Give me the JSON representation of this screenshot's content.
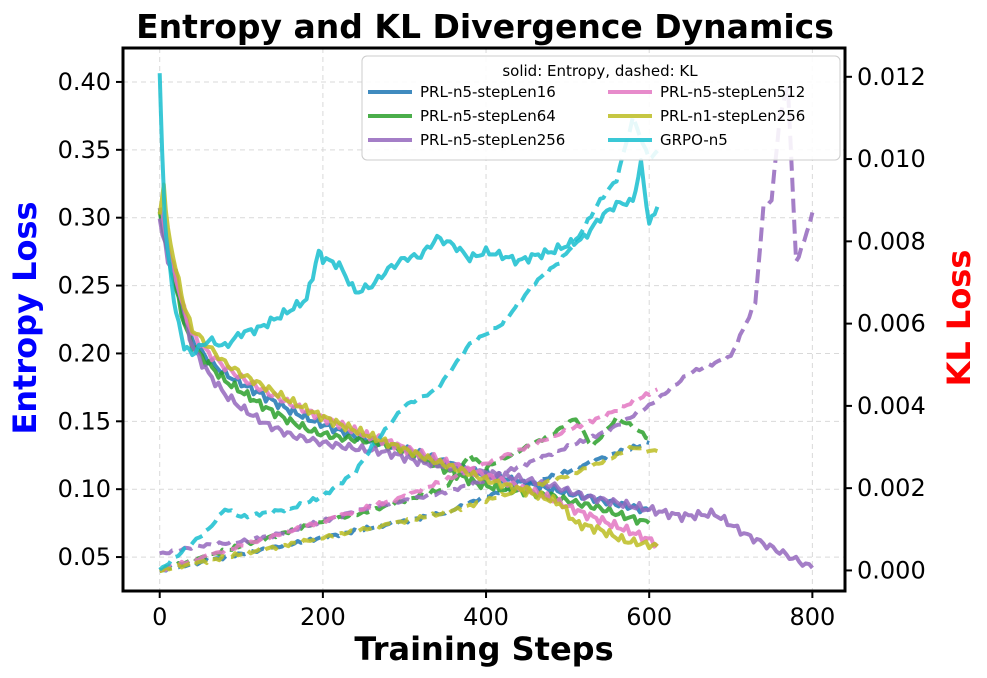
{
  "chart_data": {
    "type": "line",
    "title": "Entropy and KL Divergence Dynamics",
    "xlabel": "Training Steps",
    "ylabel_left": "Entropy Loss",
    "ylabel_right": "KL Loss",
    "ylabel_left_color": "#0000ff",
    "ylabel_right_color": "#ff0000",
    "xlim": [
      -45,
      840
    ],
    "ylim_left": [
      0.025,
      0.425
    ],
    "ylim_right": [
      -0.0005,
      0.0127
    ],
    "xticks": [
      0,
      200,
      400,
      600,
      800
    ],
    "xtick_labels": [
      "0",
      "200",
      "400",
      "600",
      "800"
    ],
    "yticks_left": [
      0.05,
      0.1,
      0.15,
      0.2,
      0.25,
      0.3,
      0.35,
      0.4
    ],
    "ytick_labels_left": [
      "0.05",
      "0.10",
      "0.15",
      "0.20",
      "0.25",
      "0.30",
      "0.35",
      "0.40"
    ],
    "yticks_right": [
      0.0,
      0.002,
      0.004,
      0.006,
      0.008,
      0.01,
      0.012
    ],
    "ytick_labels_right": [
      "0.000",
      "0.002",
      "0.004",
      "0.006",
      "0.008",
      "0.010",
      "0.012"
    ],
    "grid": true,
    "legend_title": "solid: Entropy, dashed: KL",
    "legend_position": "top-right",
    "series": [
      {
        "name": "PRL-n5-stepLen16",
        "color": "#1f77b4",
        "entropy": {
          "x": [
            0,
            10,
            20,
            30,
            40,
            60,
            80,
            100,
            130,
            160,
            190,
            220,
            250,
            280,
            300,
            330,
            360,
            390,
            420,
            450,
            480,
            510,
            540,
            570,
            600
          ],
          "y": [
            0.305,
            0.275,
            0.25,
            0.225,
            0.21,
            0.195,
            0.185,
            0.178,
            0.168,
            0.158,
            0.15,
            0.143,
            0.137,
            0.133,
            0.13,
            0.124,
            0.118,
            0.112,
            0.108,
            0.104,
            0.1,
            0.096,
            0.092,
            0.088,
            0.084
          ]
        },
        "kl": {
          "x": [
            0,
            50,
            100,
            150,
            200,
            250,
            300,
            350,
            400,
            450,
            500,
            550,
            600
          ],
          "y": [
            0.0,
            0.0002,
            0.0004,
            0.0006,
            0.0008,
            0.001,
            0.0012,
            0.0014,
            0.0018,
            0.0021,
            0.0024,
            0.0028,
            0.0031
          ]
        }
      },
      {
        "name": "PRL-n5-stepLen64",
        "color": "#2ca02c",
        "entropy": {
          "x": [
            0,
            10,
            20,
            30,
            40,
            60,
            80,
            100,
            130,
            160,
            190,
            220,
            250,
            280,
            300,
            330,
            360,
            390,
            420,
            450,
            480,
            510,
            540,
            570,
            600
          ],
          "y": [
            0.305,
            0.272,
            0.247,
            0.222,
            0.206,
            0.192,
            0.18,
            0.172,
            0.16,
            0.15,
            0.142,
            0.138,
            0.136,
            0.132,
            0.128,
            0.12,
            0.112,
            0.104,
            0.1,
            0.098,
            0.095,
            0.09,
            0.086,
            0.08,
            0.075
          ]
        },
        "kl": {
          "x": [
            0,
            50,
            100,
            150,
            200,
            250,
            300,
            350,
            380,
            400,
            450,
            480,
            510,
            530,
            560,
            580,
            600
          ],
          "y": [
            0.0,
            0.0003,
            0.0006,
            0.0009,
            0.0012,
            0.0014,
            0.0017,
            0.002,
            0.0028,
            0.0025,
            0.003,
            0.0033,
            0.0037,
            0.003,
            0.0037,
            0.0035,
            0.0032
          ]
        }
      },
      {
        "name": "PRL-n5-stepLen256",
        "color": "#9467bd",
        "entropy": {
          "x": [
            0,
            10,
            20,
            30,
            40,
            60,
            80,
            100,
            130,
            160,
            200,
            240,
            280,
            320,
            360,
            400,
            440,
            480,
            520,
            560,
            600,
            640,
            680,
            720,
            760,
            800
          ],
          "y": [
            0.3,
            0.268,
            0.258,
            0.23,
            0.205,
            0.185,
            0.17,
            0.16,
            0.148,
            0.14,
            0.134,
            0.13,
            0.127,
            0.12,
            0.116,
            0.112,
            0.108,
            0.103,
            0.095,
            0.09,
            0.085,
            0.08,
            0.082,
            0.066,
            0.054,
            0.042
          ]
        },
        "kl": {
          "x": [
            0,
            50,
            100,
            150,
            200,
            250,
            300,
            350,
            400,
            450,
            500,
            550,
            600,
            650,
            700,
            730,
            740,
            750,
            760,
            770,
            780,
            790,
            800
          ],
          "y": [
            0.0004,
            0.0006,
            0.0007,
            0.0009,
            0.0012,
            0.0015,
            0.0017,
            0.0019,
            0.0022,
            0.0026,
            0.003,
            0.0034,
            0.004,
            0.0048,
            0.0052,
            0.0065,
            0.0088,
            0.009,
            0.011,
            0.0118,
            0.0075,
            0.008,
            0.0087
          ]
        }
      },
      {
        "name": "PRL-n5-stepLen512",
        "color": "#e377c2",
        "entropy": {
          "x": [
            0,
            10,
            20,
            30,
            40,
            60,
            80,
            100,
            130,
            160,
            190,
            220,
            250,
            280,
            310,
            340,
            370,
            400,
            430,
            460,
            490,
            520,
            550,
            580,
            610
          ],
          "y": [
            0.31,
            0.28,
            0.255,
            0.232,
            0.214,
            0.2,
            0.19,
            0.182,
            0.172,
            0.163,
            0.155,
            0.148,
            0.14,
            0.135,
            0.128,
            0.122,
            0.116,
            0.11,
            0.104,
            0.098,
            0.09,
            0.082,
            0.075,
            0.068,
            0.06
          ]
        },
        "kl": {
          "x": [
            0,
            50,
            100,
            150,
            200,
            250,
            300,
            350,
            400,
            450,
            500,
            550,
            600,
            610
          ],
          "y": [
            0.0,
            0.0003,
            0.0006,
            0.0009,
            0.0012,
            0.0015,
            0.0018,
            0.0022,
            0.0026,
            0.003,
            0.0034,
            0.0038,
            0.0043,
            0.0044
          ]
        }
      },
      {
        "name": "PRL-n1-stepLen256",
        "color": "#bcbd22",
        "entropy": {
          "x": [
            0,
            5,
            10,
            20,
            30,
            40,
            60,
            80,
            100,
            130,
            160,
            190,
            220,
            250,
            280,
            310,
            340,
            370,
            400,
            430,
            460,
            490,
            510,
            540,
            570,
            600,
            610
          ],
          "y": [
            0.3,
            0.325,
            0.29,
            0.262,
            0.235,
            0.218,
            0.205,
            0.193,
            0.185,
            0.175,
            0.165,
            0.156,
            0.148,
            0.141,
            0.134,
            0.127,
            0.12,
            0.114,
            0.107,
            0.102,
            0.096,
            0.09,
            0.075,
            0.07,
            0.062,
            0.059,
            0.058
          ]
        },
        "kl": {
          "x": [
            0,
            50,
            100,
            150,
            200,
            250,
            300,
            350,
            400,
            450,
            500,
            550,
            580,
            600,
            610
          ],
          "y": [
            0.0,
            0.0002,
            0.0004,
            0.0006,
            0.0008,
            0.001,
            0.0012,
            0.0014,
            0.0017,
            0.002,
            0.0023,
            0.0027,
            0.003,
            0.0029,
            0.0029
          ]
        }
      },
      {
        "name": "GRPO-n5",
        "color": "#17becf",
        "entropy": {
          "x": [
            0,
            3,
            6,
            10,
            15,
            20,
            30,
            40,
            60,
            80,
            100,
            120,
            140,
            160,
            180,
            195,
            200,
            220,
            240,
            260,
            280,
            300,
            320,
            340,
            360,
            380,
            400,
            420,
            440,
            460,
            480,
            500,
            520,
            540,
            560,
            580,
            590,
            600,
            610
          ],
          "y": [
            0.405,
            0.35,
            0.3,
            0.275,
            0.25,
            0.23,
            0.205,
            0.2,
            0.21,
            0.205,
            0.215,
            0.218,
            0.225,
            0.232,
            0.24,
            0.275,
            0.27,
            0.265,
            0.245,
            0.25,
            0.262,
            0.27,
            0.272,
            0.285,
            0.28,
            0.27,
            0.275,
            0.272,
            0.268,
            0.272,
            0.275,
            0.28,
            0.285,
            0.3,
            0.31,
            0.312,
            0.34,
            0.295,
            0.308
          ]
        },
        "kl": {
          "x": [
            0,
            30,
            60,
            80,
            100,
            130,
            160,
            200,
            240,
            260,
            300,
            340,
            380,
            420,
            460,
            490,
            510,
            540,
            560,
            580,
            600,
            610
          ],
          "y": [
            0.0,
            0.0005,
            0.001,
            0.0015,
            0.0013,
            0.0014,
            0.0015,
            0.0018,
            0.0024,
            0.003,
            0.004,
            0.0044,
            0.0055,
            0.006,
            0.007,
            0.0075,
            0.008,
            0.009,
            0.0095,
            0.011,
            0.01,
            0.0102
          ]
        }
      }
    ]
  }
}
